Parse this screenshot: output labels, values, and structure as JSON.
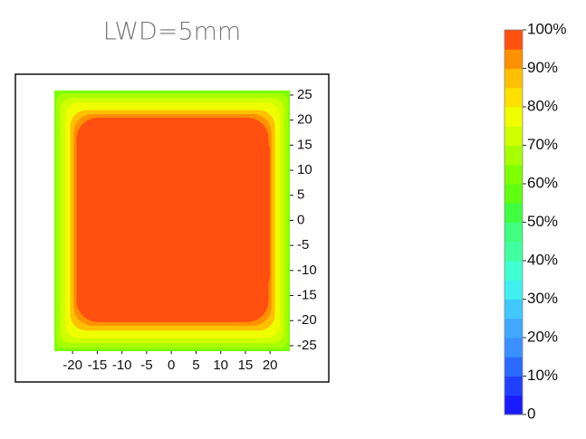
{
  "chart_data": {
    "type": "contour",
    "title": "LWD=5mm",
    "xlim": [
      -23.7,
      24
    ],
    "ylim": [
      -26.1,
      25.9
    ],
    "xticks": [
      -20,
      -15,
      -10,
      -5,
      0,
      5,
      10,
      15,
      20
    ],
    "yticks": [
      -25,
      -20,
      -15,
      -10,
      -5,
      0,
      5,
      10,
      15,
      20,
      25
    ],
    "contours": [
      {
        "level": 60,
        "x": [
          -23.7,
          24
        ],
        "y": [
          -26.1,
          25.9
        ]
      },
      {
        "level": 65,
        "x": [
          -23.3,
          23.6
        ],
        "y": [
          -25.5,
          25.3
        ]
      },
      {
        "level": 70,
        "x": [
          -22.5,
          22.8
        ],
        "y": [
          -24.5,
          24.4
        ]
      },
      {
        "level": 75,
        "x": [
          -21.5,
          22
        ],
        "y": [
          -23.5,
          23.5
        ]
      },
      {
        "level": 85,
        "x": [
          -20.5,
          21
        ],
        "y": [
          -22,
          22
        ]
      },
      {
        "level": 90,
        "x": [
          -19.8,
          20.3
        ],
        "y": [
          -21,
          21.2
        ]
      },
      {
        "level": 95,
        "x": [
          -19.2,
          19.7
        ],
        "y": [
          -20.3,
          20.5
        ]
      },
      {
        "level": 100,
        "x": [
          -18.6,
          20
        ],
        "y": [
          -15.5,
          18.5
        ]
      }
    ],
    "colorbar": {
      "lim": [
        0,
        100
      ],
      "colors": [
        "#1a1aff",
        "#2040ff",
        "#2a6aff",
        "#3a90ff",
        "#40a8ff",
        "#40c8ff",
        "#40f0f0",
        "#40ffd0",
        "#40ffa0",
        "#40ff80",
        "#40ff40",
        "#60ff10",
        "#80ff00",
        "#a8ff00",
        "#d0ff00",
        "#f0ff00",
        "#ffe000",
        "#ffc000",
        "#ff9000",
        "#ff5010"
      ],
      "ticks": [
        0,
        {
          "value": 10,
          "label": "10%"
        },
        {
          "value": 20,
          "label": "20%"
        },
        {
          "value": 30,
          "label": "30%"
        },
        {
          "value": 40,
          "label": "40%"
        },
        {
          "value": 50,
          "label": "50%"
        },
        {
          "value": 60,
          "label": "60%"
        },
        {
          "value": 70,
          "label": "70%"
        },
        {
          "value": 80,
          "label": "80%"
        },
        {
          "value": 90,
          "label": "90%"
        },
        {
          "value": 100,
          "label": "100%"
        }
      ]
    }
  }
}
